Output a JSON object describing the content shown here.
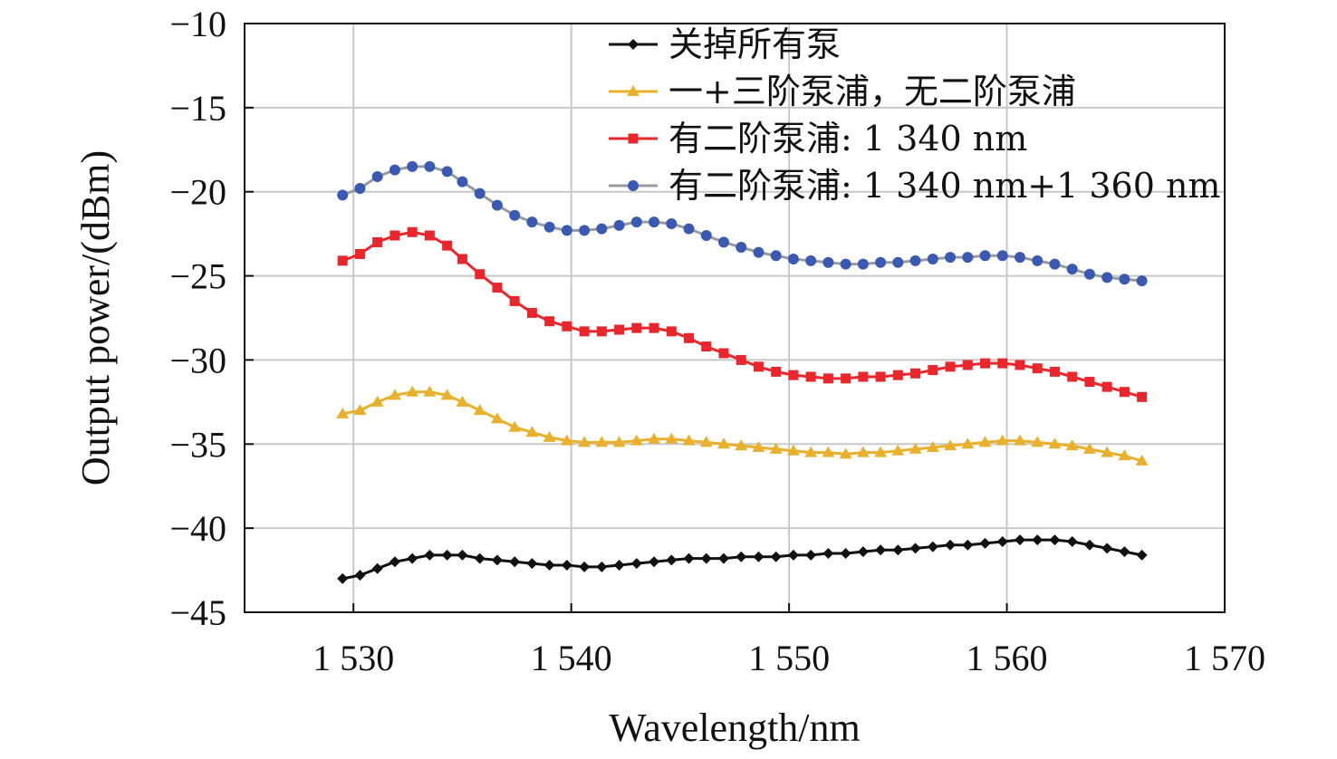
{
  "chart_data": {
    "type": "line",
    "xlabel": "Wavelength/nm",
    "ylabel": "Output power/(dBm)",
    "xlim": [
      1525,
      1570
    ],
    "ylim": [
      -45,
      -10
    ],
    "xticks": [
      1530,
      1540,
      1550,
      1560,
      1570
    ],
    "xtick_labels": [
      "1 530",
      "1 540",
      "1 550",
      "1 560",
      "1 570"
    ],
    "yticks": [
      -10,
      -15,
      -20,
      -25,
      -30,
      -35,
      -40,
      -45
    ],
    "ytick_labels": [
      "−10",
      "−15",
      "−20",
      "−25",
      "−30",
      "−35",
      "−40",
      "−45"
    ],
    "grid": true,
    "legend_position": "top-right",
    "x": [
      1529.5,
      1530.3,
      1531.1,
      1531.9,
      1532.7,
      1533.5,
      1534.3,
      1535.0,
      1535.8,
      1536.6,
      1537.4,
      1538.2,
      1539.0,
      1539.8,
      1540.6,
      1541.4,
      1542.2,
      1543.0,
      1543.8,
      1544.6,
      1545.4,
      1546.2,
      1547.0,
      1547.8,
      1548.6,
      1549.4,
      1550.2,
      1551.0,
      1551.8,
      1552.6,
      1553.4,
      1554.2,
      1555.0,
      1555.8,
      1556.6,
      1557.4,
      1558.2,
      1559.0,
      1559.8,
      1560.6,
      1561.4,
      1562.2,
      1563.0,
      1563.8,
      1564.6,
      1565.4,
      1566.2
    ],
    "series": [
      {
        "name": "关掉所有泵",
        "color": "#111111",
        "marker": "diamond",
        "values": [
          -43.0,
          -42.8,
          -42.4,
          -42.0,
          -41.8,
          -41.6,
          -41.6,
          -41.6,
          -41.8,
          -41.9,
          -42.0,
          -42.1,
          -42.2,
          -42.2,
          -42.3,
          -42.3,
          -42.2,
          -42.1,
          -42.0,
          -41.9,
          -41.8,
          -41.8,
          -41.8,
          -41.7,
          -41.7,
          -41.7,
          -41.6,
          -41.6,
          -41.5,
          -41.5,
          -41.4,
          -41.3,
          -41.3,
          -41.2,
          -41.1,
          -41.0,
          -41.0,
          -40.9,
          -40.8,
          -40.7,
          -40.7,
          -40.7,
          -40.8,
          -41.0,
          -41.2,
          -41.4,
          -41.6
        ]
      },
      {
        "name": "一+三阶泵浦，无二阶泵浦",
        "color": "#e8b02c",
        "marker": "triangle",
        "values": [
          -33.2,
          -33.0,
          -32.5,
          -32.1,
          -31.9,
          -31.9,
          -32.1,
          -32.5,
          -33.0,
          -33.5,
          -34.0,
          -34.3,
          -34.6,
          -34.8,
          -34.9,
          -34.9,
          -34.9,
          -34.8,
          -34.7,
          -34.7,
          -34.8,
          -34.9,
          -35.0,
          -35.1,
          -35.2,
          -35.3,
          -35.4,
          -35.5,
          -35.5,
          -35.6,
          -35.5,
          -35.5,
          -35.4,
          -35.3,
          -35.2,
          -35.1,
          -35.0,
          -34.9,
          -34.8,
          -34.8,
          -34.9,
          -35.0,
          -35.1,
          -35.3,
          -35.5,
          -35.7,
          -36.0
        ]
      },
      {
        "name": "有二阶泵浦: 1 340 nm",
        "color": "#e8262c",
        "marker": "square",
        "values": [
          -24.1,
          -23.7,
          -23.0,
          -22.6,
          -22.4,
          -22.6,
          -23.2,
          -24.0,
          -24.9,
          -25.7,
          -26.5,
          -27.2,
          -27.7,
          -28.0,
          -28.3,
          -28.3,
          -28.2,
          -28.1,
          -28.1,
          -28.3,
          -28.7,
          -29.2,
          -29.6,
          -30.0,
          -30.4,
          -30.7,
          -30.9,
          -31.0,
          -31.1,
          -31.1,
          -31.0,
          -31.0,
          -30.9,
          -30.8,
          -30.6,
          -30.4,
          -30.3,
          -30.2,
          -30.2,
          -30.3,
          -30.5,
          -30.7,
          -31.0,
          -31.3,
          -31.6,
          -31.9,
          -32.2
        ]
      },
      {
        "name": "有二阶泵浦: 1 340 nm+1 360 nm",
        "color": "#3a59b3",
        "marker": "circle",
        "values": [
          -20.2,
          -19.8,
          -19.1,
          -18.7,
          -18.5,
          -18.5,
          -18.8,
          -19.4,
          -20.1,
          -20.8,
          -21.4,
          -21.8,
          -22.1,
          -22.3,
          -22.3,
          -22.2,
          -22.0,
          -21.8,
          -21.8,
          -21.9,
          -22.2,
          -22.6,
          -23.0,
          -23.3,
          -23.6,
          -23.8,
          -24.0,
          -24.1,
          -24.2,
          -24.3,
          -24.3,
          -24.2,
          -24.2,
          -24.1,
          -24.0,
          -23.9,
          -23.9,
          -23.8,
          -23.8,
          -23.9,
          -24.1,
          -24.3,
          -24.6,
          -24.9,
          -25.1,
          -25.2,
          -25.3
        ]
      }
    ]
  }
}
